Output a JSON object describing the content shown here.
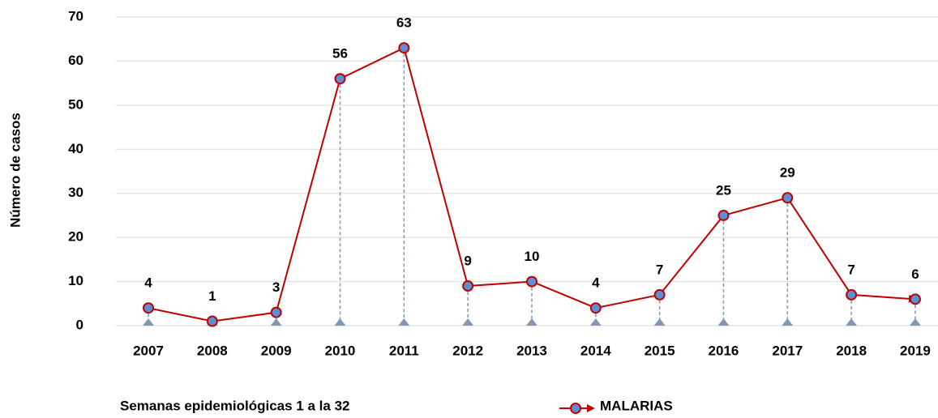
{
  "chart_data": {
    "type": "line",
    "categories": [
      "2007",
      "2008",
      "2009",
      "2010",
      "2011",
      "2012",
      "2013",
      "2014",
      "2015",
      "2016",
      "2017",
      "2018",
      "2019"
    ],
    "series": [
      {
        "name": "MALARIAS",
        "color": "#c00000",
        "marker_color": "#5b8fd6",
        "values": [
          4,
          1,
          3,
          56,
          63,
          9,
          10,
          4,
          7,
          25,
          29,
          7,
          6
        ]
      }
    ],
    "ylim": [
      0,
      70
    ],
    "yticks": [
      0,
      10,
      20,
      30,
      40,
      50,
      60,
      70
    ],
    "grid": true,
    "ylabel": "Número de casos",
    "xlabel": "Semanas epidemiológicas 1 a la 32",
    "drop_lines": true,
    "legend": "bottom"
  }
}
